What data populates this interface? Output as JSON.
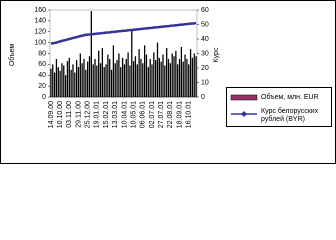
{
  "chart_data": {
    "type": "bar-line",
    "y_label": "Объем",
    "y2_label": "Курс",
    "categories": [
      "14.09.00",
      null,
      null,
      null,
      null,
      "10.10.00",
      null,
      null,
      null,
      null,
      "03.11.00",
      null,
      null,
      null,
      null,
      "29.11.00",
      null,
      null,
      null,
      null,
      "25.12.00",
      null,
      null,
      null,
      null,
      "19.01.01",
      null,
      null,
      null,
      null,
      "15.02.01",
      null,
      null,
      null,
      null,
      "13.03.01",
      null,
      null,
      null,
      null,
      "10.04.01",
      null,
      null,
      null,
      null,
      "10.05.01",
      null,
      null,
      null,
      null,
      "06.06.01",
      null,
      null,
      null,
      null,
      "02.07.01",
      null,
      null,
      null,
      null,
      "27.07.01",
      null,
      null,
      null,
      null,
      "22.08.01",
      null,
      null,
      null,
      null,
      "18.09.01",
      null,
      null,
      null,
      null,
      "16.10.01",
      null,
      null,
      null,
      null
    ],
    "series": [
      {
        "name": "Объем, млн. EUR",
        "color": "#000000",
        "legend_color": "#993366",
        "values": [
          52,
          60,
          45,
          70,
          55,
          48,
          62,
          58,
          40,
          66,
          72,
          50,
          60,
          45,
          68,
          55,
          80,
          62,
          70,
          50,
          65,
          75,
          158,
          60,
          70,
          58,
          85,
          62,
          90,
          55,
          60,
          78,
          70,
          50,
          95,
          62,
          68,
          80,
          55,
          72,
          60,
          70,
          82,
          58,
          125,
          66,
          75,
          60,
          88,
          70,
          62,
          95,
          78,
          55,
          70,
          60,
          82,
          68,
          100,
          72,
          65,
          78,
          58,
          90,
          70,
          62,
          80,
          75,
          85,
          60,
          70,
          92,
          65,
          78,
          70,
          60,
          88,
          72,
          80,
          75
        ]
      },
      {
        "name": "Курс белорусских рублей (BYR)",
        "color": "#333399",
        "axis": "y2",
        "values": [
          37,
          37,
          37.3,
          37.5,
          38,
          38.3,
          38.7,
          39,
          39.3,
          39.7,
          40,
          40.3,
          40.7,
          41,
          41.3,
          41.7,
          42,
          42.3,
          42.6,
          42.9,
          43.0,
          43.1,
          43.3,
          43.4,
          43.5,
          43.7,
          43.8,
          43.9,
          44.1,
          44.2,
          44.4,
          44.5,
          44.6,
          44.8,
          44.9,
          45.0,
          45.2,
          45.3,
          45.4,
          45.6,
          45.7,
          45.8,
          46.0,
          46.1,
          46.2,
          46.4,
          46.5,
          46.6,
          46.8,
          46.9,
          47.1,
          47.2,
          47.3,
          47.5,
          47.6,
          47.7,
          47.9,
          48.0,
          48.1,
          48.3,
          48.4,
          48.5,
          48.7,
          48.8,
          48.9,
          49.1,
          49.2,
          49.3,
          49.5,
          49.6,
          49.8,
          49.9,
          50.0,
          50.2,
          50.3,
          50.4,
          50.6,
          50.7,
          50.8,
          51.0
        ]
      }
    ],
    "ylim": [
      0,
      160
    ],
    "yticks": [
      0,
      20,
      40,
      60,
      80,
      100,
      120,
      140,
      160
    ],
    "y2lim": [
      0,
      60
    ],
    "y2ticks": [
      0,
      10,
      20,
      30,
      40,
      50,
      60
    ]
  }
}
